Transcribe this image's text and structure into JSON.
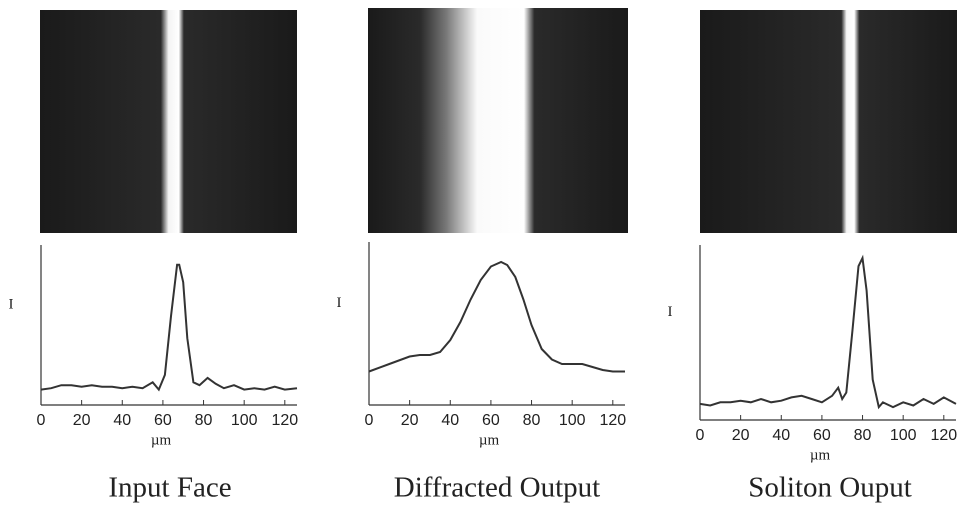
{
  "chart_data": [
    {
      "type": "line",
      "title": "Input Face",
      "x_label": "µm",
      "y_label": "I",
      "color": "#333333",
      "xlim": [
        0,
        126
      ],
      "xticks": [
        0,
        20,
        40,
        60,
        80,
        100,
        120
      ],
      "ylim": [
        0,
        1
      ],
      "x": [
        0,
        5,
        10,
        15,
        20,
        25,
        30,
        35,
        40,
        45,
        50,
        55,
        58,
        61,
        64,
        67,
        68,
        70,
        72,
        75,
        78,
        82,
        86,
        90,
        95,
        100,
        105,
        110,
        115,
        120,
        126
      ],
      "values": [
        0.05,
        0.06,
        0.08,
        0.08,
        0.07,
        0.08,
        0.07,
        0.07,
        0.06,
        0.07,
        0.06,
        0.1,
        0.05,
        0.15,
        0.55,
        0.9,
        0.9,
        0.78,
        0.4,
        0.1,
        0.08,
        0.13,
        0.09,
        0.06,
        0.08,
        0.05,
        0.06,
        0.05,
        0.07,
        0.05,
        0.06
      ]
    },
    {
      "type": "line",
      "title": "Diffracted Output",
      "x_label": "µm",
      "y_label": "I",
      "color": "#333333",
      "xlim": [
        0,
        126
      ],
      "xticks": [
        0,
        20,
        40,
        60,
        80,
        100,
        120
      ],
      "ylim": [
        0,
        1
      ],
      "x": [
        0,
        10,
        20,
        25,
        30,
        35,
        40,
        45,
        50,
        55,
        60,
        65,
        68,
        72,
        76,
        80,
        85,
        90,
        95,
        100,
        105,
        110,
        115,
        120,
        126
      ],
      "values": [
        0.17,
        0.22,
        0.27,
        0.28,
        0.28,
        0.3,
        0.38,
        0.5,
        0.65,
        0.78,
        0.87,
        0.9,
        0.88,
        0.8,
        0.65,
        0.48,
        0.32,
        0.25,
        0.22,
        0.22,
        0.22,
        0.2,
        0.18,
        0.17,
        0.17
      ]
    },
    {
      "type": "line",
      "title": "Soliton Ouput",
      "x_label": "µm",
      "y_label": "I",
      "color": "#333333",
      "xlim": [
        0,
        126
      ],
      "xticks": [
        0,
        20,
        40,
        60,
        80,
        100,
        120
      ],
      "ylim": [
        0,
        1
      ],
      "x": [
        0,
        5,
        10,
        15,
        20,
        25,
        30,
        35,
        40,
        45,
        50,
        55,
        60,
        65,
        68,
        70,
        72,
        75,
        78,
        80,
        82,
        85,
        88,
        90,
        95,
        100,
        105,
        110,
        115,
        120,
        126
      ],
      "values": [
        0.05,
        0.04,
        0.06,
        0.06,
        0.07,
        0.06,
        0.08,
        0.06,
        0.07,
        0.09,
        0.1,
        0.08,
        0.06,
        0.1,
        0.15,
        0.08,
        0.12,
        0.5,
        0.9,
        0.95,
        0.75,
        0.2,
        0.03,
        0.06,
        0.03,
        0.06,
        0.04,
        0.08,
        0.05,
        0.09,
        0.05
      ]
    }
  ]
}
